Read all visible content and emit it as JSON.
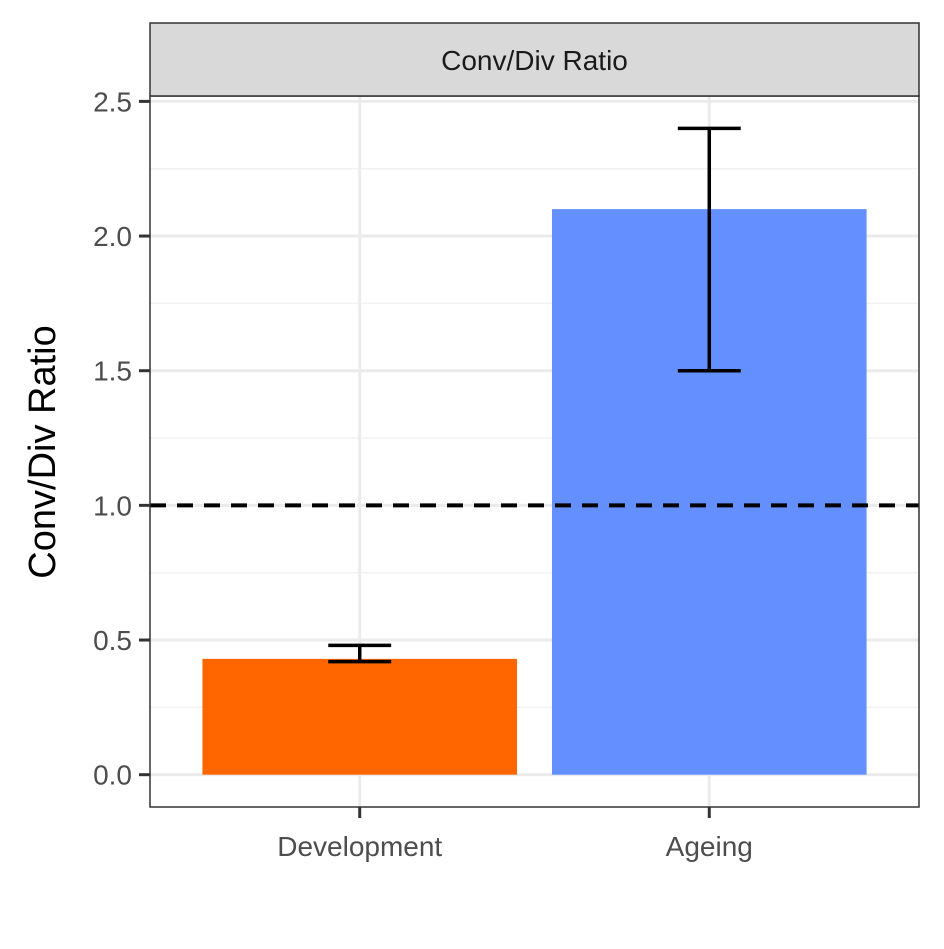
{
  "chart_data": {
    "type": "bar",
    "strip_title": "Conv/Div Ratio",
    "title": "",
    "xlabel": "",
    "ylabel": "Conv/Div Ratio",
    "categories": [
      "Development",
      "Ageing"
    ],
    "values": [
      0.43,
      2.1
    ],
    "error_low": [
      0.42,
      1.5
    ],
    "error_high": [
      0.48,
      2.4
    ],
    "colors": [
      "#FF6600",
      "#648FFF"
    ],
    "reference_line": 1.0,
    "ylim": [
      -0.12,
      2.52
    ],
    "yticks": [
      0.0,
      0.5,
      1.0,
      1.5,
      2.0,
      2.5
    ],
    "ytick_labels": [
      "0.0",
      "0.5",
      "1.0",
      "1.5",
      "2.0",
      "2.5"
    ],
    "grid": true,
    "legend": "none"
  }
}
